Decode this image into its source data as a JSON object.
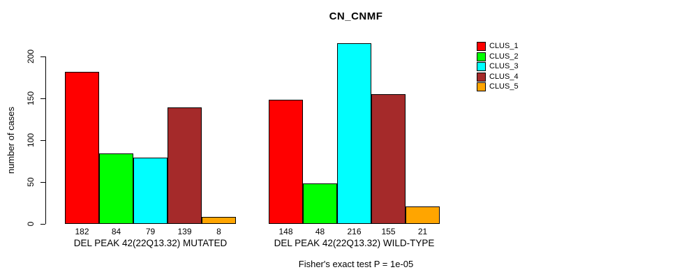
{
  "chart_data": {
    "type": "bar",
    "title": "CN_CNMF",
    "ylabel": "number of cases",
    "ylim": [
      0,
      216
    ],
    "yticks": [
      0,
      50,
      100,
      150,
      200
    ],
    "grid": false,
    "legend_position": "right",
    "background": "#ffffff",
    "bar_border_color": "#000000",
    "series": [
      {
        "name": "CLUS_1",
        "color": "#ff0000"
      },
      {
        "name": "CLUS_2",
        "color": "#00ff00"
      },
      {
        "name": "CLUS_3",
        "color": "#00ffff"
      },
      {
        "name": "CLUS_4",
        "color": "#a52a2a"
      },
      {
        "name": "CLUS_5",
        "color": "#ffa500"
      }
    ],
    "groups": [
      {
        "label": "DEL PEAK 42(22Q13.32) MUTATED",
        "values": [
          182,
          84,
          79,
          139,
          8
        ]
      },
      {
        "label": "DEL PEAK 42(22Q13.32) WILD-TYPE",
        "values": [
          148,
          48,
          216,
          155,
          21
        ]
      }
    ],
    "values_shown_under_bars": true,
    "annotation": "Fisher's exact test P = 1e-05"
  }
}
